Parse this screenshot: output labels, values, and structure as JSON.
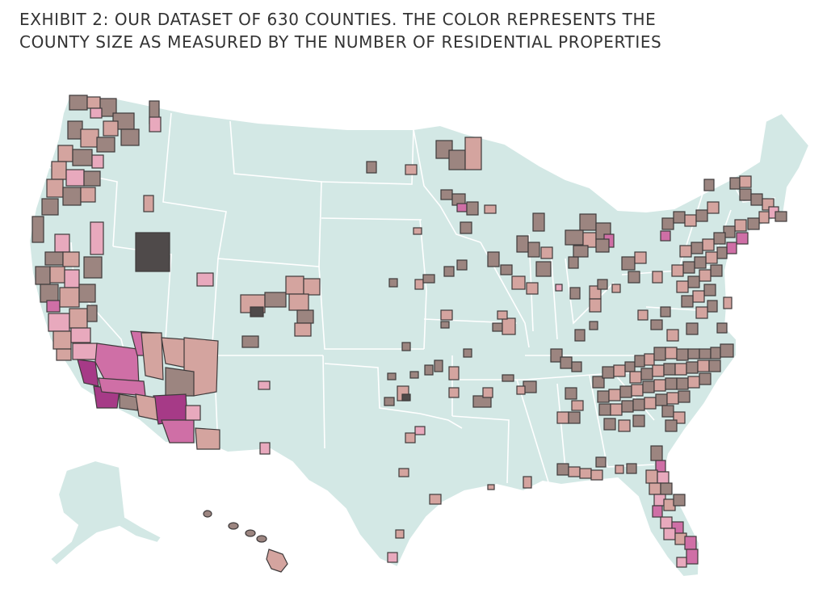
{
  "title": {
    "line1": "EXHIBIT 2: OUR DATASET OF 630 COUNTIES. THE COLOR REPRESENTS THE",
    "line2": "COUNTY SIZE AS MEASURED BY THE NUMBER OF RESIDENTIAL PROPERTIES"
  },
  "colors": {
    "land": "#d3e8e5",
    "state_borders": "#ffffff",
    "county_outline": "#3e3a3b",
    "size_scale": [
      "#e8a9bd",
      "#d4a49f",
      "#9c8580",
      "#cf6fa6",
      "#a63a87",
      "#4f4a4a"
    ]
  }
}
